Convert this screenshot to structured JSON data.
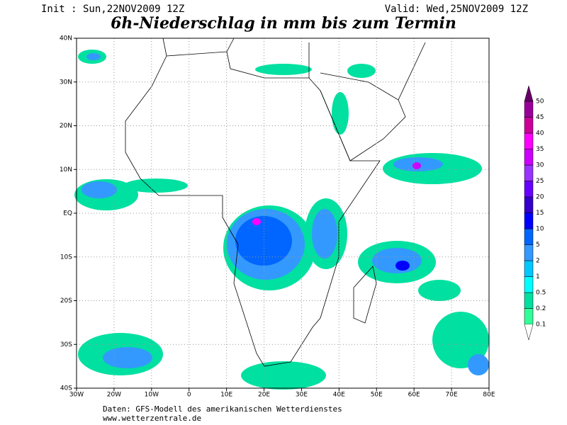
{
  "header": {
    "init": "Init : Sun,22NOV2009  12Z",
    "valid": "Valid: Wed,25NOV2009  12Z",
    "title": "6h-Niederschlag in mm bis zum Termin"
  },
  "map": {
    "lon_labels": [
      "30W",
      "20W",
      "10W",
      "0",
      "10E",
      "20E",
      "30E",
      "40E",
      "50E",
      "60E",
      "70E",
      "80E"
    ],
    "lat_labels": [
      "40N",
      "30N",
      "20N",
      "10N",
      "EQ",
      "10S",
      "20S",
      "30S",
      "40S"
    ]
  },
  "colorbar": {
    "labels": [
      0.1,
      0.2,
      0.5,
      1,
      2,
      5,
      10,
      15,
      20,
      25,
      30,
      35,
      40,
      45,
      50
    ],
    "colors": [
      "#33ff99",
      "#00e0a0",
      "#00ffff",
      "#00c8ff",
      "#3399ff",
      "#0066ff",
      "#0000ff",
      "#3300cc",
      "#6600ff",
      "#9933ff",
      "#cc00ff",
      "#ff00ff",
      "#cc0099",
      "#990099",
      "#660066"
    ]
  },
  "footer": {
    "source": "Daten: GFS-Modell des amerikanischen Wetterdienstes",
    "url": "www.wetterzentrale.de"
  }
}
